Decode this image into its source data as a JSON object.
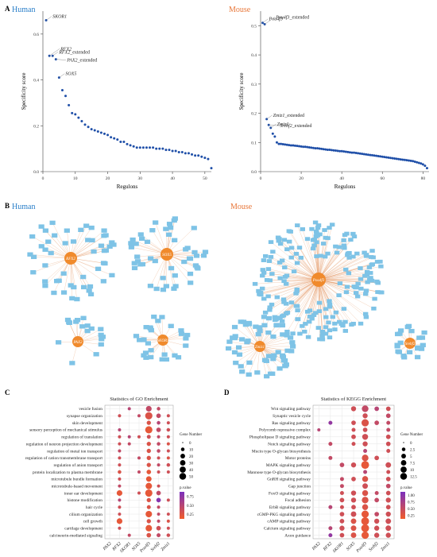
{
  "panels": {
    "A": {
      "letter": "A",
      "human_title": "Human",
      "mouse_title": "Mouse"
    },
    "B": {
      "letter": "B",
      "human_title": "Human",
      "mouse_title": "Mouse"
    },
    "C": {
      "letter": "C",
      "title": "Statistics of GO Enrichment"
    },
    "D": {
      "letter": "D",
      "title": "Statistics of KEGG Enrichment"
    }
  },
  "colors": {
    "human_title": "#2a7fc9",
    "mouse_title": "#e8773a",
    "scatter_point": "#1f4fa8",
    "network_node": "#7ec3e6",
    "network_hub": "#f08a2c",
    "network_edge": "#e6a070",
    "pvalue_high": "#7b2fbe",
    "pvalue_low": "#f25c2a"
  },
  "chart_data": [
    {
      "id": "A-human",
      "type": "scatter",
      "xlabel": "Regulons",
      "ylabel": "Specificity score",
      "xlim": [
        0,
        52
      ],
      "ylim": [
        0,
        0.7
      ],
      "x_ticks": [
        0,
        10,
        20,
        30,
        40,
        50
      ],
      "y_ticks": [
        0.0,
        0.2,
        0.4,
        0.6
      ],
      "annotations": [
        {
          "label": "SKOR1",
          "x": 1,
          "y": 0.66
        },
        {
          "label": "RFX2",
          "x": 2,
          "y": 0.505
        },
        {
          "label": "RFX2_extended",
          "x": 3,
          "y": 0.505
        },
        {
          "label": "PAX2_extended",
          "x": 4,
          "y": 0.49
        },
        {
          "label": "SOX5",
          "x": 5,
          "y": 0.41
        }
      ],
      "values": [
        0.66,
        0.505,
        0.505,
        0.49,
        0.41,
        0.355,
        0.33,
        0.29,
        0.255,
        0.25,
        0.235,
        0.22,
        0.205,
        0.195,
        0.185,
        0.18,
        0.175,
        0.17,
        0.165,
        0.16,
        0.15,
        0.145,
        0.14,
        0.13,
        0.13,
        0.12,
        0.115,
        0.11,
        0.105,
        0.105,
        0.105,
        0.105,
        0.105,
        0.105,
        0.1,
        0.1,
        0.1,
        0.095,
        0.095,
        0.09,
        0.09,
        0.085,
        0.085,
        0.08,
        0.08,
        0.075,
        0.07,
        0.07,
        0.065,
        0.06,
        0.055,
        0.015
      ]
    },
    {
      "id": "A-mouse",
      "type": "scatter",
      "xlabel": "Regulons",
      "ylabel": "Specificity score",
      "xlim": [
        0,
        83
      ],
      "ylim": [
        0,
        0.55
      ],
      "x_ticks": [
        0,
        20,
        40,
        60,
        80
      ],
      "y_ticks": [
        0.0,
        0.1,
        0.2,
        0.3,
        0.4,
        0.5
      ],
      "annotations": [
        {
          "label": "Pou4f3",
          "x": 1,
          "y": 0.51
        },
        {
          "label": "Pou4f3_extended",
          "x": 2,
          "y": 0.505
        },
        {
          "label": "Zmiz1_extended",
          "x": 3,
          "y": 0.18
        },
        {
          "label": "Srebf2_extended",
          "x": 4,
          "y": 0.16
        },
        {
          "label": "Zmiz1",
          "x": 5,
          "y": 0.15
        }
      ],
      "values": [
        0.51,
        0.505,
        0.18,
        0.16,
        0.15,
        0.13,
        0.12,
        0.1,
        0.095,
        0.095,
        0.094,
        0.093,
        0.092,
        0.091,
        0.09,
        0.09,
        0.089,
        0.088,
        0.087,
        0.086,
        0.085,
        0.085,
        0.084,
        0.083,
        0.082,
        0.081,
        0.08,
        0.08,
        0.079,
        0.078,
        0.077,
        0.076,
        0.075,
        0.075,
        0.074,
        0.073,
        0.072,
        0.071,
        0.07,
        0.07,
        0.069,
        0.068,
        0.067,
        0.066,
        0.065,
        0.065,
        0.064,
        0.063,
        0.062,
        0.061,
        0.06,
        0.059,
        0.058,
        0.057,
        0.056,
        0.055,
        0.054,
        0.053,
        0.052,
        0.051,
        0.05,
        0.049,
        0.048,
        0.047,
        0.046,
        0.045,
        0.044,
        0.043,
        0.042,
        0.041,
        0.04,
        0.039,
        0.038,
        0.037,
        0.036,
        0.034,
        0.032,
        0.03,
        0.028,
        0.025,
        0.02,
        0.012
      ]
    },
    {
      "id": "C-go",
      "type": "scatter",
      "title": "Statistics of GO Enrichment",
      "categories_x": [
        "PAX2",
        "RFX2",
        "SKOR1",
        "SOX5",
        "Pou4f3",
        "Srebf2",
        "Zmiz1"
      ],
      "categories_y": [
        "vesicle fusion",
        "synapse organization",
        "skin development",
        "sensory perception of mechanical stimulus",
        "regulation of translation",
        "regulation of neuron projection development",
        "regulation of metal ion transport",
        "regulation of cation transmembrane transport",
        "regulation of anion transport",
        "protein localization to plasma membrane",
        "microtubule bundle formation",
        "microtubule-based movement",
        "inner ear development",
        "histone modification",
        "hair cycle",
        "cilium organization",
        "cell growth",
        "cartilage development",
        "calcineurin-mediated signaling"
      ],
      "size_legend_title": "Gene Number",
      "size_legend": [
        0,
        10,
        20,
        30,
        40,
        50
      ],
      "color_legend_title": "p.value",
      "color_legend": [
        "0.75",
        "0.50",
        "0.25"
      ],
      "points": [
        [
          2,
          0,
          4,
          0.5
        ],
        [
          4,
          0,
          22,
          0.4
        ],
        [
          5,
          0,
          6,
          0.4
        ],
        [
          1,
          1,
          4,
          0.3
        ],
        [
          3,
          1,
          4,
          0.4
        ],
        [
          4,
          1,
          40,
          0.2
        ],
        [
          5,
          1,
          12,
          0.4
        ],
        [
          6,
          1,
          4,
          0.3
        ],
        [
          4,
          2,
          10,
          0.2
        ],
        [
          5,
          2,
          6,
          0.5
        ],
        [
          6,
          2,
          4,
          0.3
        ],
        [
          1,
          3,
          4,
          0.5
        ],
        [
          4,
          3,
          40,
          0.1
        ],
        [
          5,
          3,
          12,
          0.4
        ],
        [
          6,
          3,
          6,
          0.3
        ],
        [
          1,
          4,
          4,
          0.3
        ],
        [
          2,
          4,
          4,
          0.5
        ],
        [
          3,
          4,
          4,
          0.3
        ],
        [
          4,
          4,
          8,
          0.3
        ],
        [
          5,
          4,
          4,
          0.4
        ],
        [
          6,
          4,
          4,
          0.3
        ],
        [
          1,
          5,
          4,
          0.3
        ],
        [
          2,
          5,
          4,
          0.4
        ],
        [
          4,
          5,
          10,
          0.2
        ],
        [
          5,
          5,
          6,
          0.4
        ],
        [
          6,
          5,
          4,
          0.2
        ],
        [
          1,
          6,
          4,
          0.4
        ],
        [
          4,
          6,
          10,
          0.2
        ],
        [
          5,
          6,
          6,
          0.4
        ],
        [
          6,
          6,
          4,
          0.3
        ],
        [
          1,
          7,
          4,
          0.3
        ],
        [
          3,
          7,
          4,
          0.4
        ],
        [
          4,
          7,
          10,
          0.2
        ],
        [
          5,
          7,
          4,
          0.3
        ],
        [
          6,
          7,
          4,
          0.2
        ],
        [
          1,
          8,
          4,
          0.3
        ],
        [
          4,
          8,
          10,
          0.2
        ],
        [
          5,
          8,
          4,
          0.4
        ],
        [
          6,
          8,
          6,
          0.3
        ],
        [
          1,
          9,
          6,
          0.2
        ],
        [
          3,
          9,
          4,
          0.4
        ],
        [
          4,
          9,
          12,
          0.1
        ],
        [
          5,
          9,
          4,
          0.3
        ],
        [
          6,
          9,
          4,
          0.3
        ],
        [
          1,
          10,
          4,
          0.3
        ],
        [
          4,
          10,
          20,
          0.1
        ],
        [
          1,
          11,
          4,
          0.4
        ],
        [
          4,
          11,
          30,
          0.1
        ],
        [
          5,
          11,
          4,
          0.3
        ],
        [
          1,
          12,
          22,
          0.1
        ],
        [
          3,
          12,
          4,
          0.3
        ],
        [
          4,
          12,
          40,
          0.1
        ],
        [
          5,
          12,
          12,
          0.4
        ],
        [
          1,
          13,
          4,
          0.5
        ],
        [
          4,
          13,
          10,
          0.2
        ],
        [
          5,
          13,
          12,
          0.9
        ],
        [
          6,
          13,
          4,
          0.3
        ],
        [
          1,
          14,
          4,
          0.3
        ],
        [
          4,
          14,
          8,
          0.2
        ],
        [
          5,
          14,
          4,
          0.4
        ],
        [
          1,
          15,
          4,
          0.3
        ],
        [
          4,
          15,
          30,
          0.1
        ],
        [
          5,
          15,
          4,
          0.4
        ],
        [
          6,
          15,
          4,
          0.3
        ],
        [
          1,
          16,
          22,
          0.1
        ],
        [
          4,
          16,
          10,
          0.2
        ],
        [
          5,
          16,
          4,
          0.4
        ],
        [
          6,
          16,
          4,
          0.2
        ],
        [
          1,
          17,
          4,
          0.3
        ],
        [
          4,
          17,
          30,
          0.1
        ],
        [
          5,
          17,
          12,
          0.3
        ],
        [
          6,
          17,
          4,
          0.3
        ],
        [
          2,
          18,
          4,
          0.4
        ],
        [
          4,
          18,
          12,
          0.2
        ],
        [
          5,
          18,
          8,
          0.4
        ],
        [
          6,
          18,
          6,
          0.3
        ]
      ]
    },
    {
      "id": "D-kegg",
      "type": "scatter",
      "title": "Statistics of KEGG Enrichment",
      "categories_x": [
        "PAX2",
        "RFX2",
        "SKOR1",
        "SOX5",
        "Pou4f3",
        "Srebf2",
        "Zmiz1"
      ],
      "categories_y": [
        "Wnt signaling pathway",
        "Synaptic vesicle cycle",
        "Ras signaling pathway",
        "Polycomb repressive complex",
        "Phospholipase D signaling pathway",
        "Notch signaling pathway",
        "Mucin type O-glycan biosynthesis",
        "Motor proteins",
        "MAPK signaling pathway",
        "Mannose type O-glycan biosynthesis",
        "GnRH signaling pathway",
        "Gap junction",
        "FoxO signaling pathway",
        "Focal adhesion",
        "ErbB signaling pathway",
        "cGMP-PKG signaling pathway",
        "cAMP signaling pathway",
        "Calcium signaling pathway",
        "Axon guidance"
      ],
      "size_legend_title": "Gene Number",
      "size_legend": [
        0.0,
        2.5,
        5.0,
        7.5,
        10.0,
        12.5
      ],
      "color_legend_title": "p.value",
      "color_legend": [
        "1.00",
        "0.75",
        "0.50",
        "0.25"
      ],
      "points": [
        [
          3,
          0,
          4,
          0.3
        ],
        [
          4,
          0,
          8,
          0.4
        ],
        [
          5,
          0,
          3,
          0.5
        ],
        [
          6,
          0,
          3,
          0.3
        ],
        [
          4,
          1,
          4,
          0.3
        ],
        [
          6,
          1,
          3,
          0.4
        ],
        [
          1,
          2,
          2,
          0.8
        ],
        [
          3,
          2,
          3,
          0.3
        ],
        [
          4,
          2,
          10,
          0.2
        ],
        [
          5,
          2,
          3,
          0.4
        ],
        [
          6,
          2,
          2,
          0.4
        ],
        [
          0,
          3,
          1,
          0.5
        ],
        [
          3,
          3,
          2,
          0.3
        ],
        [
          4,
          3,
          3,
          0.3
        ],
        [
          6,
          3,
          2,
          0.4
        ],
        [
          3,
          4,
          3,
          0.3
        ],
        [
          4,
          4,
          6,
          0.3
        ],
        [
          6,
          4,
          3,
          0.3
        ],
        [
          1,
          5,
          2,
          0.4
        ],
        [
          3,
          5,
          2,
          0.3
        ],
        [
          4,
          5,
          4,
          0.3
        ],
        [
          6,
          5,
          3,
          0.3
        ],
        [
          4,
          6,
          2,
          0.5
        ],
        [
          6,
          6,
          2,
          0.3
        ],
        [
          1,
          7,
          2,
          0.4
        ],
        [
          4,
          7,
          8,
          0.2
        ],
        [
          5,
          7,
          3,
          0.3
        ],
        [
          2,
          8,
          3,
          0.4
        ],
        [
          3,
          8,
          4,
          0.3
        ],
        [
          4,
          8,
          12,
          0.1
        ],
        [
          6,
          8,
          5,
          0.3
        ],
        [
          4,
          9,
          2,
          0.5
        ],
        [
          6,
          9,
          2,
          0.3
        ],
        [
          2,
          10,
          2,
          0.4
        ],
        [
          3,
          10,
          3,
          0.3
        ],
        [
          4,
          10,
          6,
          0.2
        ],
        [
          6,
          10,
          3,
          0.3
        ],
        [
          2,
          11,
          2,
          0.4
        ],
        [
          4,
          11,
          5,
          0.3
        ],
        [
          6,
          11,
          3,
          0.4
        ],
        [
          2,
          12,
          2,
          0.3
        ],
        [
          3,
          12,
          4,
          0.3
        ],
        [
          4,
          12,
          6,
          0.2
        ],
        [
          5,
          12,
          2,
          0.4
        ],
        [
          6,
          12,
          3,
          0.3
        ],
        [
          2,
          13,
          3,
          0.3
        ],
        [
          3,
          13,
          4,
          0.3
        ],
        [
          4,
          13,
          8,
          0.2
        ],
        [
          5,
          13,
          3,
          0.4
        ],
        [
          6,
          13,
          4,
          0.3
        ],
        [
          1,
          14,
          2,
          0.5
        ],
        [
          2,
          14,
          2,
          0.3
        ],
        [
          3,
          14,
          3,
          0.3
        ],
        [
          4,
          14,
          6,
          0.2
        ],
        [
          6,
          14,
          3,
          0.3
        ],
        [
          2,
          15,
          3,
          0.3
        ],
        [
          3,
          15,
          5,
          0.3
        ],
        [
          4,
          15,
          10,
          0.1
        ],
        [
          5,
          15,
          3,
          0.4
        ],
        [
          6,
          15,
          4,
          0.3
        ],
        [
          2,
          16,
          3,
          0.3
        ],
        [
          3,
          16,
          5,
          0.2
        ],
        [
          4,
          16,
          12,
          0.1
        ],
        [
          5,
          16,
          4,
          0.3
        ],
        [
          6,
          16,
          5,
          0.3
        ],
        [
          1,
          17,
          2,
          0.5
        ],
        [
          2,
          17,
          4,
          0.3
        ],
        [
          3,
          17,
          5,
          0.2
        ],
        [
          4,
          17,
          12,
          0.1
        ],
        [
          5,
          17,
          4,
          0.3
        ],
        [
          6,
          17,
          5,
          0.3
        ],
        [
          1,
          18,
          2,
          0.8
        ],
        [
          2,
          18,
          3,
          0.3
        ],
        [
          3,
          18,
          5,
          0.2
        ],
        [
          4,
          18,
          10,
          0.1
        ],
        [
          5,
          18,
          4,
          0.3
        ],
        [
          6,
          18,
          4,
          0.3
        ]
      ]
    }
  ],
  "networks": [
    {
      "id": "human-rfx2",
      "hub": "RFX2",
      "nodes": 52,
      "rings": [
        3,
        10
      ],
      "hub_radius": 8
    },
    {
      "id": "human-sox5",
      "hub": "SOX5",
      "nodes": 48,
      "rings": [
        3,
        10
      ],
      "hub_radius": 8
    },
    {
      "id": "human-pax2",
      "hub": "PAX2",
      "nodes": 18,
      "rings": [
        1,
        0
      ],
      "hub_radius": 7
    },
    {
      "id": "human-skor1",
      "hub": "SKOR1",
      "nodes": 28,
      "rings": [
        2,
        6
      ],
      "hub_radius": 7
    },
    {
      "id": "mouse-pou4f3",
      "hub": "Pou4f3",
      "nodes": 210,
      "rings": [
        5,
        20
      ],
      "hub_radius": 9
    },
    {
      "id": "mouse-zmiz1",
      "hub": "Zmiz1",
      "nodes": 60,
      "rings": [
        4,
        12
      ],
      "hub_radius": 7
    },
    {
      "id": "mouse-srebf2",
      "hub": "Srebf2",
      "nodes": 22,
      "rings": [
        2,
        6
      ],
      "hub_radius": 7
    }
  ]
}
